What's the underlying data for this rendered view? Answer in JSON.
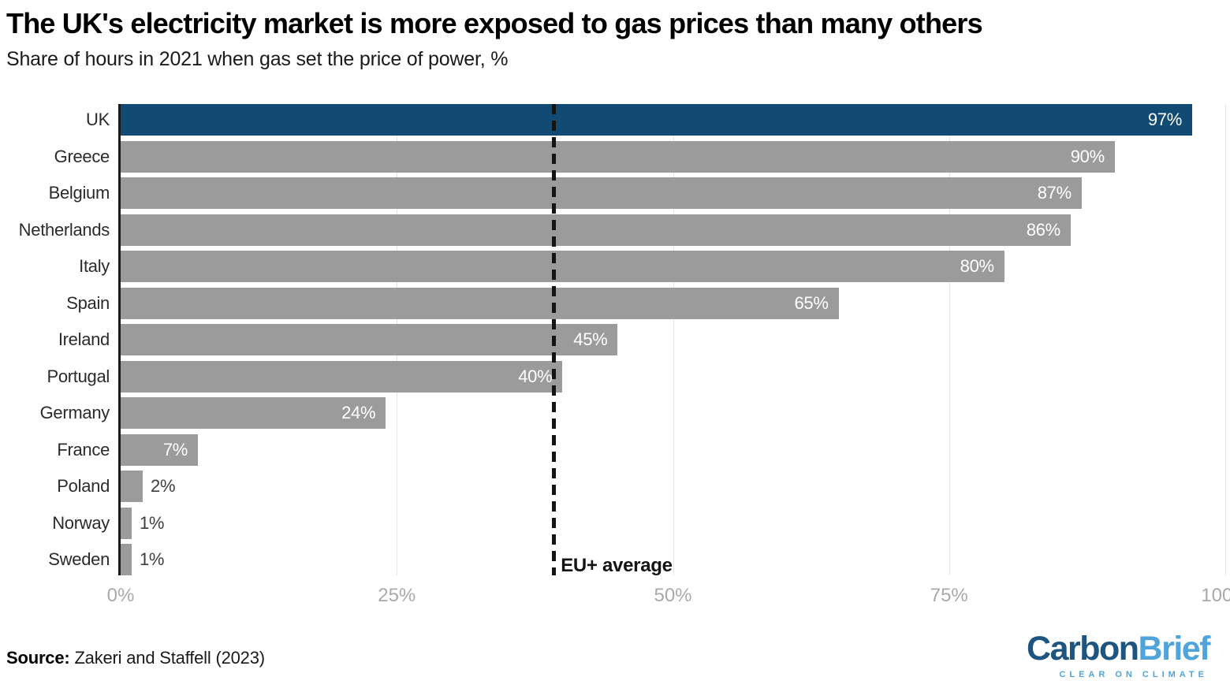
{
  "title": "The UK's electricity market is more exposed to gas prices than many others",
  "subtitle": "Share of hours in 2021 when gas set the price of power, %",
  "chart_data": {
    "type": "bar",
    "orientation": "horizontal",
    "categories": [
      "UK",
      "Greece",
      "Belgium",
      "Netherlands",
      "Italy",
      "Spain",
      "Ireland",
      "Portugal",
      "Germany",
      "France",
      "Poland",
      "Norway",
      "Sweden"
    ],
    "values": [
      97,
      90,
      87,
      86,
      80,
      65,
      45,
      40,
      24,
      7,
      2,
      1,
      1
    ],
    "value_labels": [
      "97%",
      "90%",
      "87%",
      "86%",
      "80%",
      "65%",
      "45%",
      "40%",
      "24%",
      "7%",
      "2%",
      "1%",
      "1%"
    ],
    "highlight_category": "UK",
    "xlabel": "",
    "ylabel": "",
    "xlim": [
      0,
      100
    ],
    "x_ticks": [
      0,
      25,
      50,
      75,
      100
    ],
    "x_tick_labels": [
      "0%",
      "25%",
      "50%",
      "75%",
      "100%"
    ],
    "grid": "vertical-light",
    "reference_line": {
      "label": "EU+ average",
      "value": 39.2
    },
    "colors": {
      "highlight_bar": "#114a73",
      "default_bar": "#9b9b9b",
      "gridline": "#e4e4e4",
      "axis_line": "#1a1a1a",
      "reference_line": "#141414"
    },
    "value_label_inside_threshold": 7
  },
  "footer": {
    "source_label": "Source:",
    "source_text": "Zakeri and Staffell (2023)"
  },
  "logo": {
    "part1": "Carbon",
    "part2": "Brief",
    "tagline": "CLEAR ON CLIMATE",
    "color_dark": "#1d5480",
    "color_light": "#4fa5db"
  }
}
